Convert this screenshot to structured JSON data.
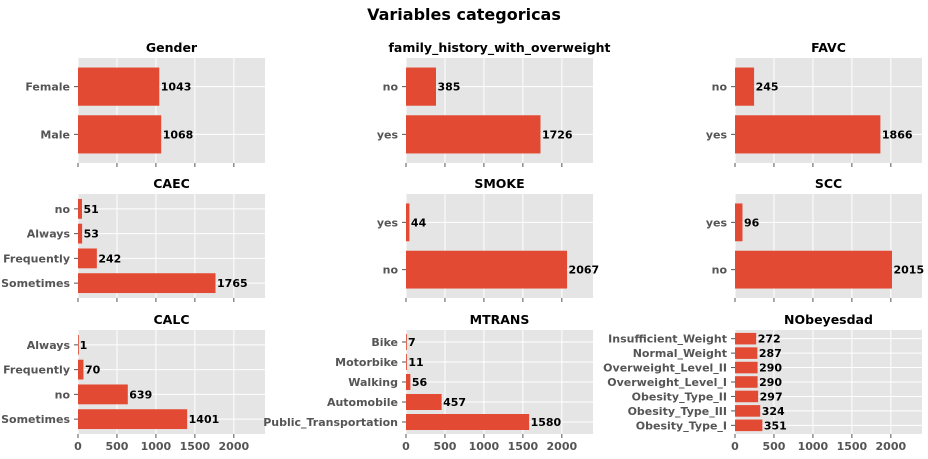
{
  "figure": {
    "title": "Variables categoricas",
    "bar_color": "#E24A33",
    "axes_bg": "#E5E5E5",
    "grid_color": "#FFFFFF",
    "text_color": "#555555",
    "label_color": "#000000"
  },
  "chart_data": [
    {
      "type": "bar",
      "orientation": "horizontal",
      "title": "Gender",
      "categories": [
        "Female",
        "Male"
      ],
      "values": [
        1043,
        1068
      ],
      "xlim": [
        0,
        2400
      ],
      "xticks": [
        0,
        500,
        1000,
        1500,
        2000
      ],
      "show_xtick_labels": false
    },
    {
      "type": "bar",
      "orientation": "horizontal",
      "title": "family_history_with_overweight",
      "categories": [
        "no",
        "yes"
      ],
      "values": [
        385,
        1726
      ],
      "xlim": [
        0,
        2400
      ],
      "xticks": [
        0,
        500,
        1000,
        1500,
        2000
      ],
      "show_xtick_labels": false
    },
    {
      "type": "bar",
      "orientation": "horizontal",
      "title": "FAVC",
      "categories": [
        "no",
        "yes"
      ],
      "values": [
        245,
        1866
      ],
      "xlim": [
        0,
        2400
      ],
      "xticks": [
        0,
        500,
        1000,
        1500,
        2000
      ],
      "show_xtick_labels": false
    },
    {
      "type": "bar",
      "orientation": "horizontal",
      "title": "CAEC",
      "categories": [
        "no",
        "Always",
        "Frequently",
        "Sometimes"
      ],
      "values": [
        51,
        53,
        242,
        1765
      ],
      "xlim": [
        0,
        2400
      ],
      "xticks": [
        0,
        500,
        1000,
        1500,
        2000
      ],
      "show_xtick_labels": false
    },
    {
      "type": "bar",
      "orientation": "horizontal",
      "title": "SMOKE",
      "categories": [
        "yes",
        "no"
      ],
      "values": [
        44,
        2067
      ],
      "xlim": [
        0,
        2400
      ],
      "xticks": [
        0,
        500,
        1000,
        1500,
        2000
      ],
      "show_xtick_labels": false
    },
    {
      "type": "bar",
      "orientation": "horizontal",
      "title": "SCC",
      "categories": [
        "yes",
        "no"
      ],
      "values": [
        96,
        2015
      ],
      "xlim": [
        0,
        2400
      ],
      "xticks": [
        0,
        500,
        1000,
        1500,
        2000
      ],
      "show_xtick_labels": false
    },
    {
      "type": "bar",
      "orientation": "horizontal",
      "title": "CALC",
      "categories": [
        "Always",
        "Frequently",
        "no",
        "Sometimes"
      ],
      "values": [
        1,
        70,
        639,
        1401
      ],
      "xlim": [
        0,
        2400
      ],
      "xticks": [
        0,
        500,
        1000,
        1500,
        2000
      ],
      "show_xtick_labels": true
    },
    {
      "type": "bar",
      "orientation": "horizontal",
      "title": "MTRANS",
      "categories": [
        "Bike",
        "Motorbike",
        "Walking",
        "Automobile",
        "Public_Transportation"
      ],
      "values": [
        7,
        11,
        56,
        457,
        1580
      ],
      "xlim": [
        0,
        2400
      ],
      "xticks": [
        0,
        500,
        1000,
        1500,
        2000
      ],
      "show_xtick_labels": true
    },
    {
      "type": "bar",
      "orientation": "horizontal",
      "title": "NObeyesdad",
      "categories": [
        "Insufficient_Weight",
        "Normal_Weight",
        "Overweight_Level_II",
        "Overweight_Level_I",
        "Obesity_Type_II",
        "Obesity_Type_III",
        "Obesity_Type_I"
      ],
      "values": [
        272,
        287,
        290,
        290,
        297,
        324,
        351
      ],
      "xlim": [
        0,
        2400
      ],
      "xticks": [
        0,
        500,
        1000,
        1500,
        2000
      ],
      "show_xtick_labels": true
    }
  ]
}
